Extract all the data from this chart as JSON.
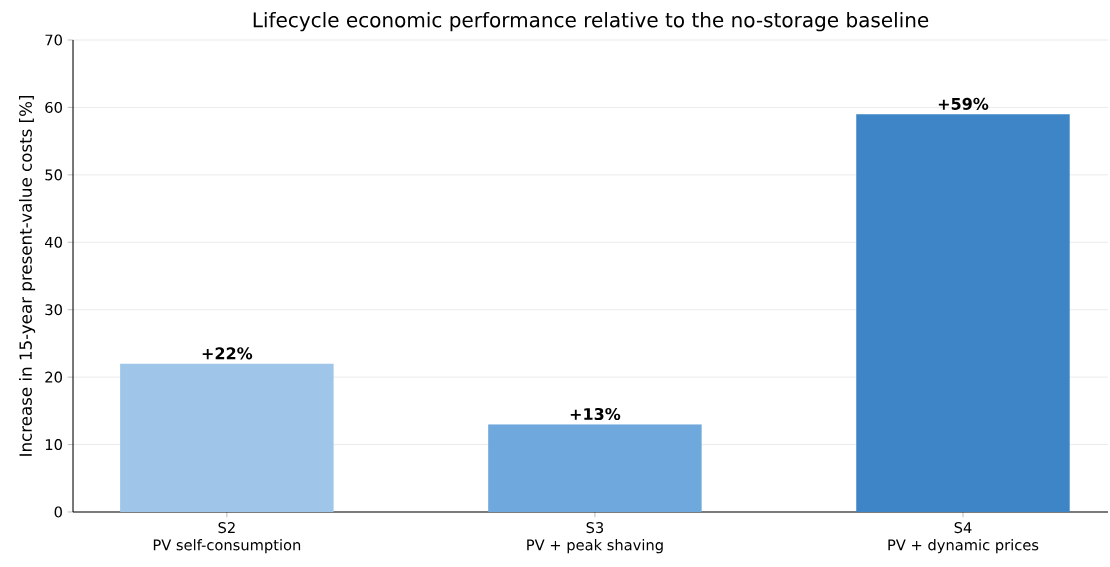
{
  "chart_data": {
    "type": "bar",
    "title": "Lifecycle economic performance relative to the no-storage baseline",
    "ylabel": "Increase in 15-year present-value costs [%]",
    "categories": [
      "S2\nPV self-consumption",
      "S3\nPV + peak shaving",
      "S4\nPV + dynamic prices"
    ],
    "values": [
      22,
      13,
      59
    ],
    "colors": [
      "#9fc5e8",
      "#6fa8dc",
      "#3d85c6"
    ],
    "value_labels": [
      "+22%",
      "+13%",
      "+59%"
    ],
    "ylim": [
      0,
      70
    ],
    "yticks": [
      0,
      10,
      20,
      30,
      40,
      50,
      60,
      70
    ],
    "grid": "y"
  }
}
